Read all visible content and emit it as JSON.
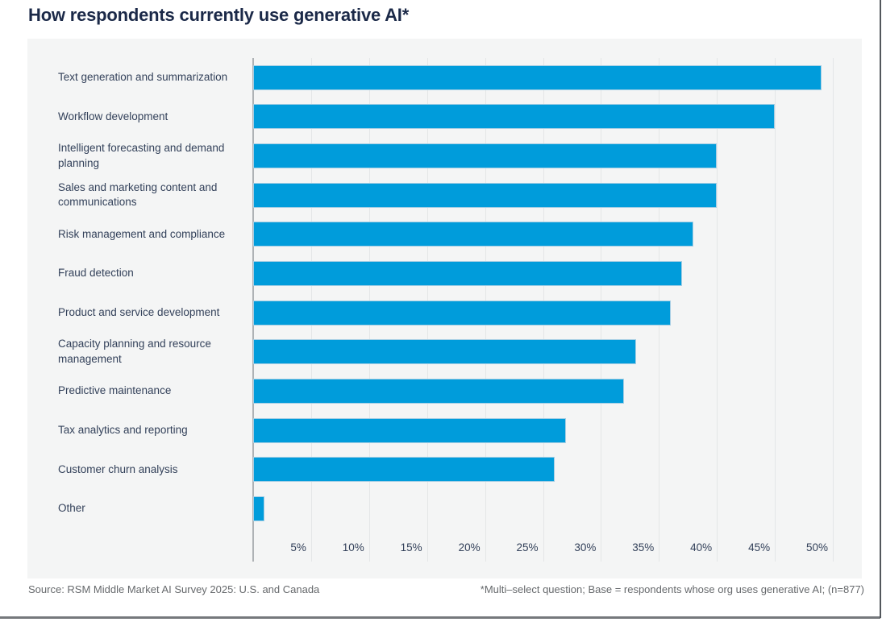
{
  "title": "How respondents currently use generative AI*",
  "footer": {
    "source": "Source: RSM Middle Market AI Survey 2025: U.S. and Canada",
    "footnote": "*Multi–select question; Base = respondents whose org uses generative AI; (n=877)"
  },
  "colors": {
    "bar": "#009CDB",
    "bar_border": "#A5CEE4",
    "title": "#1B2948",
    "panel_bg": "#F4F5F5",
    "gridline": "#E4E6E7",
    "axis_line": "#AEB2B5",
    "label_text": "#33415A",
    "footer_text": "#66696C",
    "bottom_rule": "#75787C",
    "right_rule": "#53575C"
  },
  "chart_data": {
    "type": "bar",
    "orientation": "horizontal",
    "title": "How respondents currently use generative AI*",
    "categories": [
      "Text generation and summarization",
      "Workflow development",
      "Intelligent forecasting and demand planning",
      "Sales and marketing content and communications",
      "Risk management and compliance",
      "Fraud detection",
      "Product and service development",
      "Capacity planning and resource management",
      "Predictive maintenance",
      "Tax analytics and reporting",
      "Customer churn analysis",
      "Other"
    ],
    "values": [
      49,
      45,
      40,
      40,
      38,
      37,
      36,
      33,
      32,
      27,
      26,
      1
    ],
    "unit": "%",
    "xlim": [
      0,
      50
    ],
    "x_ticks": [
      "5%",
      "10%",
      "15%",
      "20%",
      "25%",
      "30%",
      "35%",
      "40%",
      "45%",
      "50%"
    ],
    "grid": true,
    "legend": "none"
  }
}
